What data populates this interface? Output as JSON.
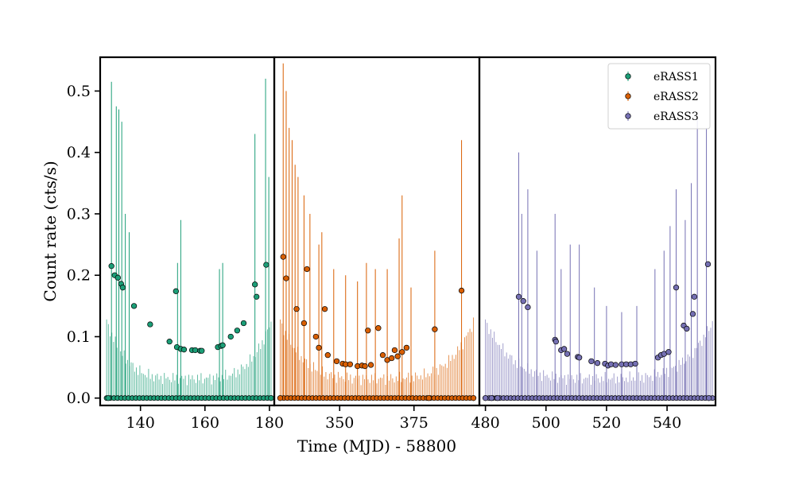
{
  "chart_data": {
    "type": "scatter",
    "xlabel": "Time (MJD) - 58800",
    "ylabel": "Count rate (cts/s)",
    "ylim": [
      -0.012,
      0.555
    ],
    "yticks": [
      0.0,
      0.1,
      0.2,
      0.3,
      0.4,
      0.5
    ],
    "ytick_labels": [
      "0.0",
      "0.1",
      "0.2",
      "0.3",
      "0.4",
      "0.5"
    ],
    "legend_position": "top-right",
    "panels": [
      {
        "xlim": [
          127.5,
          181.5
        ],
        "xticks": [
          140,
          160,
          180
        ],
        "xtick_labels": [
          "140",
          "160",
          "180"
        ],
        "series_index": 0
      },
      {
        "xlim": [
          328,
          397
        ],
        "xticks": [
          350,
          375
        ],
        "xtick_labels": [
          "350",
          "375"
        ],
        "series_index": 1
      },
      {
        "xlim": [
          478,
          556
        ],
        "xticks": [
          480,
          500,
          520,
          540
        ],
        "xtick_labels": [
          "480",
          "500",
          "520",
          "540"
        ],
        "series_index": 2
      }
    ],
    "series": [
      {
        "name": "eRASS1",
        "color": "#1b9e77",
        "x_range": [
          129.5,
          180.5
        ],
        "points": [
          [
            130,
            0.0
          ],
          [
            131,
            0.215
          ],
          [
            132,
            0.2
          ],
          [
            133,
            0.196
          ],
          [
            134,
            0.186
          ],
          [
            134.5,
            0.18
          ],
          [
            138,
            0.15
          ],
          [
            143,
            0.12
          ],
          [
            149,
            0.092
          ],
          [
            151,
            0.174
          ],
          [
            151.3,
            0.083
          ],
          [
            152.5,
            0.08
          ],
          [
            153.5,
            0.079
          ],
          [
            156,
            0.078
          ],
          [
            157,
            0.078
          ],
          [
            158.5,
            0.077
          ],
          [
            159,
            0.077
          ],
          [
            164,
            0.083
          ],
          [
            165,
            0.085
          ],
          [
            165.5,
            0.086
          ],
          [
            168,
            0.1
          ],
          [
            170,
            0.11
          ],
          [
            172,
            0.122
          ],
          [
            175.5,
            0.185
          ],
          [
            176,
            0.165
          ],
          [
            179,
            0.217
          ],
          [
            180.5,
            0.0
          ]
        ],
        "spike_tops": [
          [
            131,
            0.515
          ],
          [
            132.5,
            0.475
          ],
          [
            133.3,
            0.47
          ],
          [
            134.2,
            0.45
          ],
          [
            135.3,
            0.3
          ],
          [
            136.5,
            0.27
          ],
          [
            151.5,
            0.22
          ],
          [
            152.5,
            0.29
          ],
          [
            164.5,
            0.21
          ],
          [
            165.5,
            0.22
          ],
          [
            175.5,
            0.43
          ],
          [
            178.8,
            0.52
          ],
          [
            179.8,
            0.36
          ]
        ]
      },
      {
        "name": "eRASS2",
        "color": "#d95f02",
        "x_range": [
          330,
          395
        ],
        "points": [
          [
            330,
            0.0
          ],
          [
            331,
            0.23
          ],
          [
            332,
            0.195
          ],
          [
            335.5,
            0.145
          ],
          [
            338,
            0.122
          ],
          [
            339,
            0.21
          ],
          [
            342,
            0.1
          ],
          [
            343,
            0.082
          ],
          [
            345,
            0.145
          ],
          [
            346,
            0.07
          ],
          [
            349,
            0.06
          ],
          [
            351,
            0.056
          ],
          [
            352,
            0.055
          ],
          [
            353.5,
            0.055
          ],
          [
            356,
            0.052
          ],
          [
            357.5,
            0.053
          ],
          [
            358.5,
            0.052
          ],
          [
            359.5,
            0.11
          ],
          [
            360.5,
            0.054
          ],
          [
            363,
            0.114
          ],
          [
            364.5,
            0.07
          ],
          [
            366,
            0.062
          ],
          [
            367.5,
            0.065
          ],
          [
            368.5,
            0.078
          ],
          [
            369.5,
            0.068
          ],
          [
            371,
            0.075
          ],
          [
            372.5,
            0.082
          ],
          [
            380,
            0.0
          ],
          [
            382,
            0.112
          ],
          [
            391,
            0.175
          ],
          [
            395,
            0.0
          ]
        ],
        "spike_tops": [
          [
            331,
            0.545
          ],
          [
            332,
            0.5
          ],
          [
            333,
            0.44
          ],
          [
            334,
            0.42
          ],
          [
            335,
            0.38
          ],
          [
            336,
            0.36
          ],
          [
            338,
            0.33
          ],
          [
            340,
            0.3
          ],
          [
            343,
            0.25
          ],
          [
            344,
            0.27
          ],
          [
            348,
            0.21
          ],
          [
            352,
            0.2
          ],
          [
            356,
            0.19
          ],
          [
            359,
            0.22
          ],
          [
            362,
            0.21
          ],
          [
            366,
            0.21
          ],
          [
            370,
            0.26
          ],
          [
            371,
            0.33
          ],
          [
            374,
            0.18
          ],
          [
            382,
            0.24
          ],
          [
            391,
            0.42
          ]
        ]
      },
      {
        "name": "eRASS3",
        "color": "#7570b3",
        "x_range": [
          480,
          555
        ],
        "points": [
          [
            480,
            0.0
          ],
          [
            482,
            0.0
          ],
          [
            484,
            0.0
          ],
          [
            491,
            0.165
          ],
          [
            492.5,
            0.158
          ],
          [
            494,
            0.148
          ],
          [
            503,
            0.095
          ],
          [
            503.3,
            0.092
          ],
          [
            505,
            0.078
          ],
          [
            506,
            0.08
          ],
          [
            507,
            0.072
          ],
          [
            510.5,
            0.067
          ],
          [
            511,
            0.066
          ],
          [
            515,
            0.06
          ],
          [
            517,
            0.057
          ],
          [
            519.5,
            0.056
          ],
          [
            520.5,
            0.053
          ],
          [
            521.5,
            0.055
          ],
          [
            523,
            0.054
          ],
          [
            525,
            0.055
          ],
          [
            526.5,
            0.055
          ],
          [
            528,
            0.055
          ],
          [
            529.5,
            0.056
          ],
          [
            537,
            0.066
          ],
          [
            538,
            0.07
          ],
          [
            539,
            0.072
          ],
          [
            540.5,
            0.075
          ],
          [
            543,
            0.18
          ],
          [
            545.5,
            0.118
          ],
          [
            546.5,
            0.113
          ],
          [
            548.5,
            0.137
          ],
          [
            549,
            0.165
          ],
          [
            553.5,
            0.218
          ],
          [
            553.8,
            0.0
          ]
        ],
        "spike_tops": [
          [
            491,
            0.4
          ],
          [
            492,
            0.3
          ],
          [
            494,
            0.34
          ],
          [
            497,
            0.24
          ],
          [
            503,
            0.3
          ],
          [
            505,
            0.21
          ],
          [
            508,
            0.25
          ],
          [
            511,
            0.25
          ],
          [
            516,
            0.18
          ],
          [
            520,
            0.15
          ],
          [
            525,
            0.14
          ],
          [
            530,
            0.15
          ],
          [
            536,
            0.21
          ],
          [
            539,
            0.24
          ],
          [
            541,
            0.28
          ],
          [
            543,
            0.34
          ],
          [
            546,
            0.29
          ],
          [
            548,
            0.35
          ],
          [
            550,
            0.46
          ],
          [
            553,
            0.44
          ]
        ]
      }
    ]
  }
}
